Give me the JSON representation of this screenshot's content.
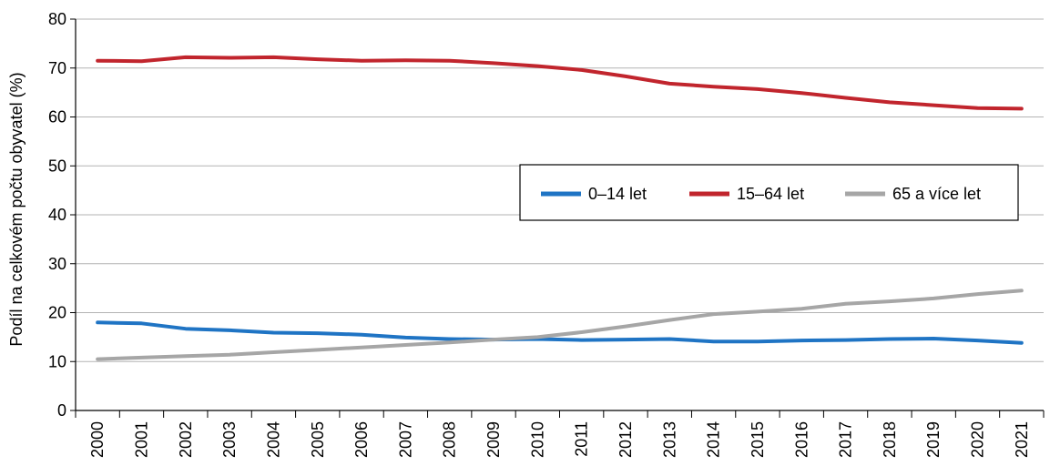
{
  "chart_data": {
    "type": "line",
    "ylabel": "Podíl na celkovém počtu obyvatel (%)",
    "ylim": [
      0,
      80
    ],
    "yticks": [
      0,
      10,
      20,
      30,
      40,
      50,
      60,
      70,
      80
    ],
    "grid": true,
    "legend_position": "center-right",
    "categories": [
      "2000",
      "2001",
      "2002",
      "2003",
      "2004",
      "2005",
      "2006",
      "2007",
      "2008",
      "2009",
      "2010",
      "2011",
      "2012",
      "2013",
      "2014",
      "2015",
      "2016",
      "2017",
      "2018",
      "2019",
      "2020",
      "2021"
    ],
    "series": [
      {
        "name": "0–14 let",
        "color": "#1f74c4",
        "values": [
          18.0,
          17.8,
          16.7,
          16.4,
          15.9,
          15.8,
          15.5,
          14.9,
          14.6,
          14.5,
          14.6,
          14.4,
          14.5,
          14.6,
          14.1,
          14.1,
          14.3,
          14.4,
          14.6,
          14.7,
          14.3,
          13.8
        ]
      },
      {
        "name": "15–64 let",
        "color": "#c1252d",
        "values": [
          71.5,
          71.4,
          72.2,
          72.1,
          72.2,
          71.8,
          71.5,
          71.6,
          71.5,
          71.0,
          70.4,
          69.6,
          68.3,
          66.8,
          66.2,
          65.7,
          64.9,
          63.9,
          63.0,
          62.4,
          61.8,
          61.7
        ]
      },
      {
        "name": "65 a více let",
        "color": "#a6a6a6",
        "values": [
          10.5,
          10.8,
          11.1,
          11.4,
          11.9,
          12.4,
          12.9,
          13.4,
          13.9,
          14.5,
          15.0,
          16.0,
          17.2,
          18.5,
          19.7,
          20.2,
          20.8,
          21.8,
          22.3,
          22.9,
          23.8,
          24.5
        ]
      }
    ]
  }
}
